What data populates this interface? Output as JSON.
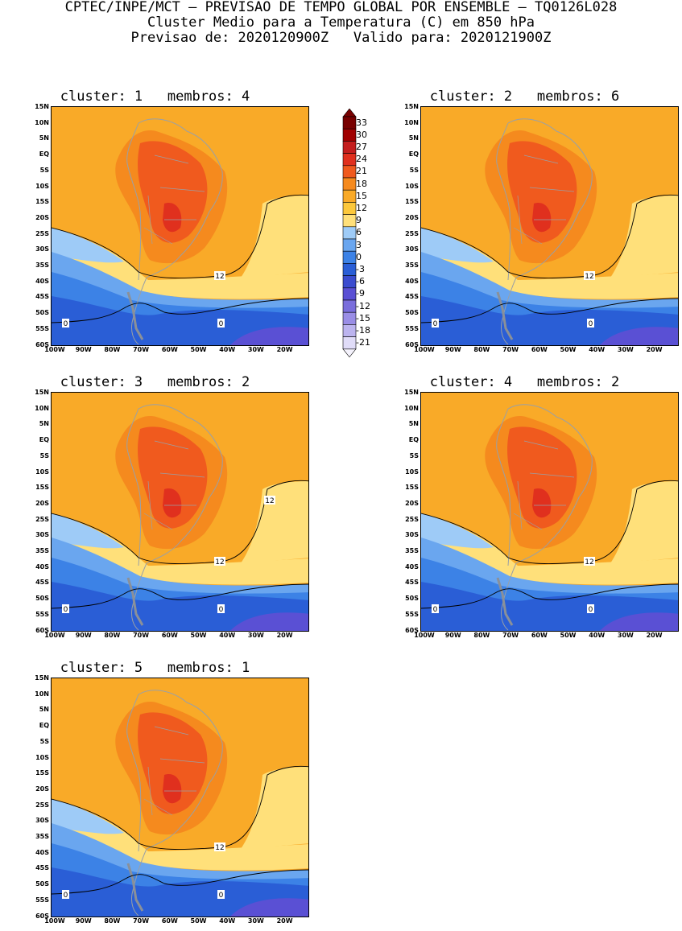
{
  "header": {
    "line1": "CPTEC/INPE/MCT – PREVISAO DE TEMPO GLOBAL POR ENSEMBLE – TQ0126L028",
    "line2": "Cluster Medio para a Temperatura (C) em 850 hPa",
    "line3": "Previsao de: 2020120900Z   Valido para: 2020121900Z"
  },
  "axes": {
    "lat_labels": [
      "15N",
      "10N",
      "5N",
      "EQ",
      "5S",
      "10S",
      "15S",
      "20S",
      "25S",
      "30S",
      "35S",
      "40S",
      "45S",
      "50S",
      "55S",
      "60S"
    ],
    "lon_labels": [
      "100W",
      "90W",
      "80W",
      "70W",
      "60W",
      "50W",
      "40W",
      "30W",
      "20W"
    ]
  },
  "colorbar": {
    "labels": [
      "33",
      "30",
      "27",
      "24",
      "21",
      "18",
      "15",
      "12",
      "9",
      "6",
      "3",
      "0",
      "-3",
      "-6",
      "-9",
      "-12",
      "-15",
      "-18",
      "-21"
    ],
    "colors": [
      "#780000",
      "#a00000",
      "#c41e1e",
      "#e0301e",
      "#f05a1e",
      "#f58a1e",
      "#f9aa28",
      "#fcc83c",
      "#ffe07a",
      "#9ecbf7",
      "#6aa6ef",
      "#3c82e6",
      "#2a5ed6",
      "#3b4ccf",
      "#5a50d4",
      "#7a6edc",
      "#9a8ee6",
      "#bcb4ef",
      "#e0dcf8"
    ]
  },
  "panels": [
    {
      "title": "cluster: 1   membros: 4",
      "contour12": "12",
      "contour0a": "0",
      "contour0b": "0"
    },
    {
      "title": "cluster: 2   membros: 6",
      "contour12": "12",
      "contour0a": "0",
      "contour0b": "0"
    },
    {
      "title": "cluster: 3   membros: 2",
      "contour12": "12",
      "contour12b": "12",
      "contour0a": "0",
      "contour0b": "0"
    },
    {
      "title": "cluster: 4   membros: 2",
      "contour12": "12",
      "contour0a": "0",
      "contour0b": "0"
    },
    {
      "title": "cluster: 5   membros: 1",
      "contour12": "12",
      "contour0a": "0",
      "contour0b": "0"
    }
  ]
}
